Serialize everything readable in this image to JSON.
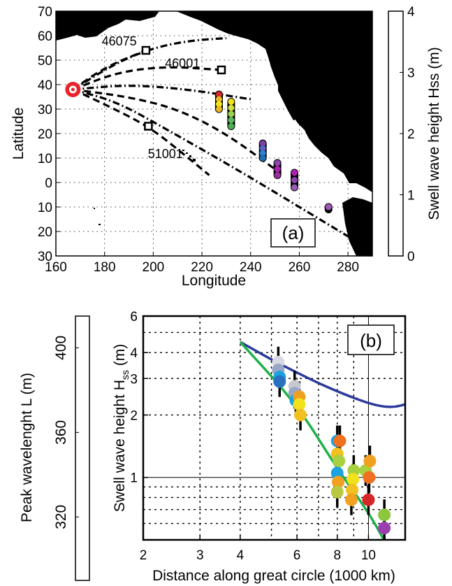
{
  "chart_data": [
    {
      "type": "map",
      "panel_label": "(a)",
      "xlabel": "Longitude",
      "ylabel": "Latitude",
      "xlim": [
        160,
        290
      ],
      "ylim": [
        -30,
        70
      ],
      "x_ticks": [
        160,
        180,
        200,
        220,
        240,
        260,
        280
      ],
      "y_ticks": [
        {
          "value": 70,
          "label": "70"
        },
        {
          "value": 60,
          "label": "60"
        },
        {
          "value": 50,
          "label": "50"
        },
        {
          "value": 40,
          "label": "40"
        },
        {
          "value": 30,
          "label": "30"
        },
        {
          "value": 20,
          "label": "20"
        },
        {
          "value": 10,
          "label": "10"
        },
        {
          "value": 0,
          "label": "0"
        },
        {
          "value": -10,
          "label": "10"
        },
        {
          "value": -20,
          "label": "20"
        },
        {
          "value": -30,
          "label": "30"
        }
      ],
      "grid": true,
      "source": {
        "lon": 167,
        "lat": 38
      },
      "buoys": [
        {
          "id": "46075",
          "lon": 197,
          "lat": 54,
          "label_lon": 186,
          "label_lat": 56
        },
        {
          "id": "46001",
          "lon": 228,
          "lat": 46,
          "label_lon": 212,
          "label_lat": 47
        },
        {
          "id": "51001",
          "lon": 198,
          "lat": 23,
          "label_lon": 205,
          "label_lat": 10
        }
      ],
      "great_circles": [
        {
          "style": "dash",
          "points": [
            [
              167,
              38
            ],
            [
              180,
              47
            ],
            [
              197,
              54
            ]
          ]
        },
        {
          "style": "dashdot",
          "points": [
            [
              167,
              38
            ],
            [
              185,
              49
            ],
            [
              200,
              55
            ],
            [
              215,
              58
            ],
            [
              230,
              59
            ]
          ]
        },
        {
          "style": "dash",
          "points": [
            [
              167,
              38
            ],
            [
              185,
              45
            ],
            [
              205,
              47.5
            ],
            [
              228,
              46
            ]
          ]
        },
        {
          "style": "dashdot",
          "points": [
            [
              167,
              38
            ],
            [
              190,
              40
            ],
            [
              215,
              38
            ],
            [
              240,
              34
            ]
          ]
        },
        {
          "style": "dash",
          "points": [
            [
              167,
              38
            ],
            [
              190,
              35
            ],
            [
              210,
              30
            ],
            [
              230,
              20
            ],
            [
              252,
              4
            ]
          ]
        },
        {
          "style": "dashdot",
          "points": [
            [
              167,
              38
            ],
            [
              185,
              33
            ],
            [
              205,
              22
            ],
            [
              235,
              5
            ],
            [
              260,
              -10
            ],
            [
              285,
              -25
            ]
          ]
        },
        {
          "style": "dash",
          "points": [
            [
              167,
              38
            ],
            [
              180,
              32
            ],
            [
              198,
              23
            ],
            [
              212,
              12
            ],
            [
              223,
              3
            ]
          ]
        }
      ],
      "observation_tracks": [
        {
          "lon": 227,
          "lat_start": 36,
          "lat_end": 30,
          "colors": [
            "#d62728",
            "#e8b923",
            "#f2e21b",
            "#e8b923"
          ]
        },
        {
          "lon": 232,
          "lat_start": 33,
          "lat_end": 23,
          "colors": [
            "#f2e21b",
            "#cfe23a",
            "#9ad34a",
            "#5cb85c",
            "#4caf50"
          ]
        },
        {
          "lon": 245,
          "lat_start": 16,
          "lat_end": 10,
          "colors": [
            "#7b3fa0",
            "#5b5fc0",
            "#2a80d0",
            "#1e6fb0"
          ]
        },
        {
          "lon": 251,
          "lat_start": 8,
          "lat_end": 3,
          "colors": [
            "#8e44ad",
            "#b020b0",
            "#9b2fa0"
          ]
        },
        {
          "lon": 258,
          "lat_start": 4,
          "lat_end": -2,
          "colors": [
            "#b020b0",
            "#8e44ad",
            "#9b59b6"
          ]
        },
        {
          "lon": 272,
          "lat_start": -10,
          "lat_end": -11,
          "colors": [
            "#9b59b6"
          ]
        }
      ],
      "colorbar": {
        "label": "Swell wave height Hss (m)",
        "range": [
          0,
          4
        ],
        "ticks": [
          "0",
          "1",
          "2",
          "3",
          "4"
        ]
      }
    },
    {
      "type": "scatter",
      "panel_label": "(b)",
      "xlabel": "Distance along great circle (1000 km)",
      "ylabel_main": "Swell wave height H",
      "ylabel_sub": "ss",
      "ylabel_unit": " (m)",
      "xscale": "log",
      "yscale": "log",
      "xlim": [
        2,
        13
      ],
      "ylim": [
        0.5,
        6
      ],
      "x_ticks": [
        "2",
        "3",
        "4",
        "6",
        "8",
        "10"
      ],
      "x_tick_values": [
        2,
        3,
        4,
        6,
        8,
        10
      ],
      "y_ticks": [
        "1",
        "2",
        "3",
        "4",
        "6"
      ],
      "y_tick_values": [
        1,
        2,
        3,
        4,
        6
      ],
      "grid": true,
      "series": [
        {
          "kind": "curve",
          "color": "#2b3a9c",
          "points": [
            [
              4,
              4.5
            ],
            [
              5,
              3.7
            ],
            [
              6,
              3.2
            ],
            [
              7,
              2.85
            ],
            [
              8,
              2.6
            ],
            [
              9,
              2.42
            ],
            [
              10,
              2.28
            ],
            [
              11,
              2.2
            ],
            [
              12,
              2.18
            ],
            [
              13,
              2.25
            ]
          ]
        },
        {
          "kind": "curve",
          "color": "#1fb04a",
          "points": [
            [
              4,
              4.5
            ],
            [
              6,
              2.25
            ],
            [
              8,
              1.1
            ],
            [
              10,
              0.68
            ],
            [
              11.5,
              0.46
            ]
          ]
        }
      ],
      "points": [
        {
          "x": 5.25,
          "y": 3.6,
          "color": "#d8d8e0"
        },
        {
          "x": 5.25,
          "y": 3.3,
          "color": "#9aa6c8"
        },
        {
          "x": 5.3,
          "y": 3.05,
          "color": "#1aa3e0"
        },
        {
          "x": 5.3,
          "y": 2.9,
          "color": "#2a70c0"
        },
        {
          "x": 5.9,
          "y": 2.75,
          "color": "#c8c8d0"
        },
        {
          "x": 5.9,
          "y": 2.55,
          "color": "#9aa6c8"
        },
        {
          "x": 5.95,
          "y": 2.35,
          "color": "#1aa3e0"
        },
        {
          "x": 6.1,
          "y": 2.45,
          "color": "#f0a020"
        },
        {
          "x": 6.1,
          "y": 2.25,
          "color": "#f2e21b"
        },
        {
          "x": 6.15,
          "y": 2.0,
          "color": "#f2c020"
        },
        {
          "x": 8.0,
          "y": 1.5,
          "color": "#1aa3e0"
        },
        {
          "x": 8.15,
          "y": 1.5,
          "color": "#f07020"
        },
        {
          "x": 8.0,
          "y": 1.3,
          "color": "#f2c020"
        },
        {
          "x": 8.1,
          "y": 1.2,
          "color": "#a8d040"
        },
        {
          "x": 8.0,
          "y": 1.05,
          "color": "#1aa3e0"
        },
        {
          "x": 8.05,
          "y": 0.95,
          "color": "#f2a020"
        },
        {
          "x": 8.0,
          "y": 0.85,
          "color": "#b8c840"
        },
        {
          "x": 9.0,
          "y": 1.08,
          "color": "#a8d040"
        },
        {
          "x": 8.95,
          "y": 0.98,
          "color": "#f2e21b"
        },
        {
          "x": 8.9,
          "y": 0.87,
          "color": "#f2c020"
        },
        {
          "x": 8.85,
          "y": 0.78,
          "color": "#f2a020"
        },
        {
          "x": 9.8,
          "y": 1.08,
          "color": "#a8d040"
        },
        {
          "x": 10.1,
          "y": 1.2,
          "color": "#f2a020"
        },
        {
          "x": 10.05,
          "y": 1.0,
          "color": "#f07020"
        },
        {
          "x": 10.0,
          "y": 0.78,
          "color": "#d62728"
        },
        {
          "x": 11.2,
          "y": 0.66,
          "color": "#8dc63f"
        },
        {
          "x": 11.2,
          "y": 0.57,
          "color": "#9b3fb0"
        }
      ],
      "colorbar": {
        "label": "Peak wavelenght L (m)",
        "ticks": [
          "320",
          "360",
          "400"
        ],
        "tick_values": [
          320,
          360,
          400
        ],
        "range": [
          290,
          415
        ]
      }
    }
  ]
}
